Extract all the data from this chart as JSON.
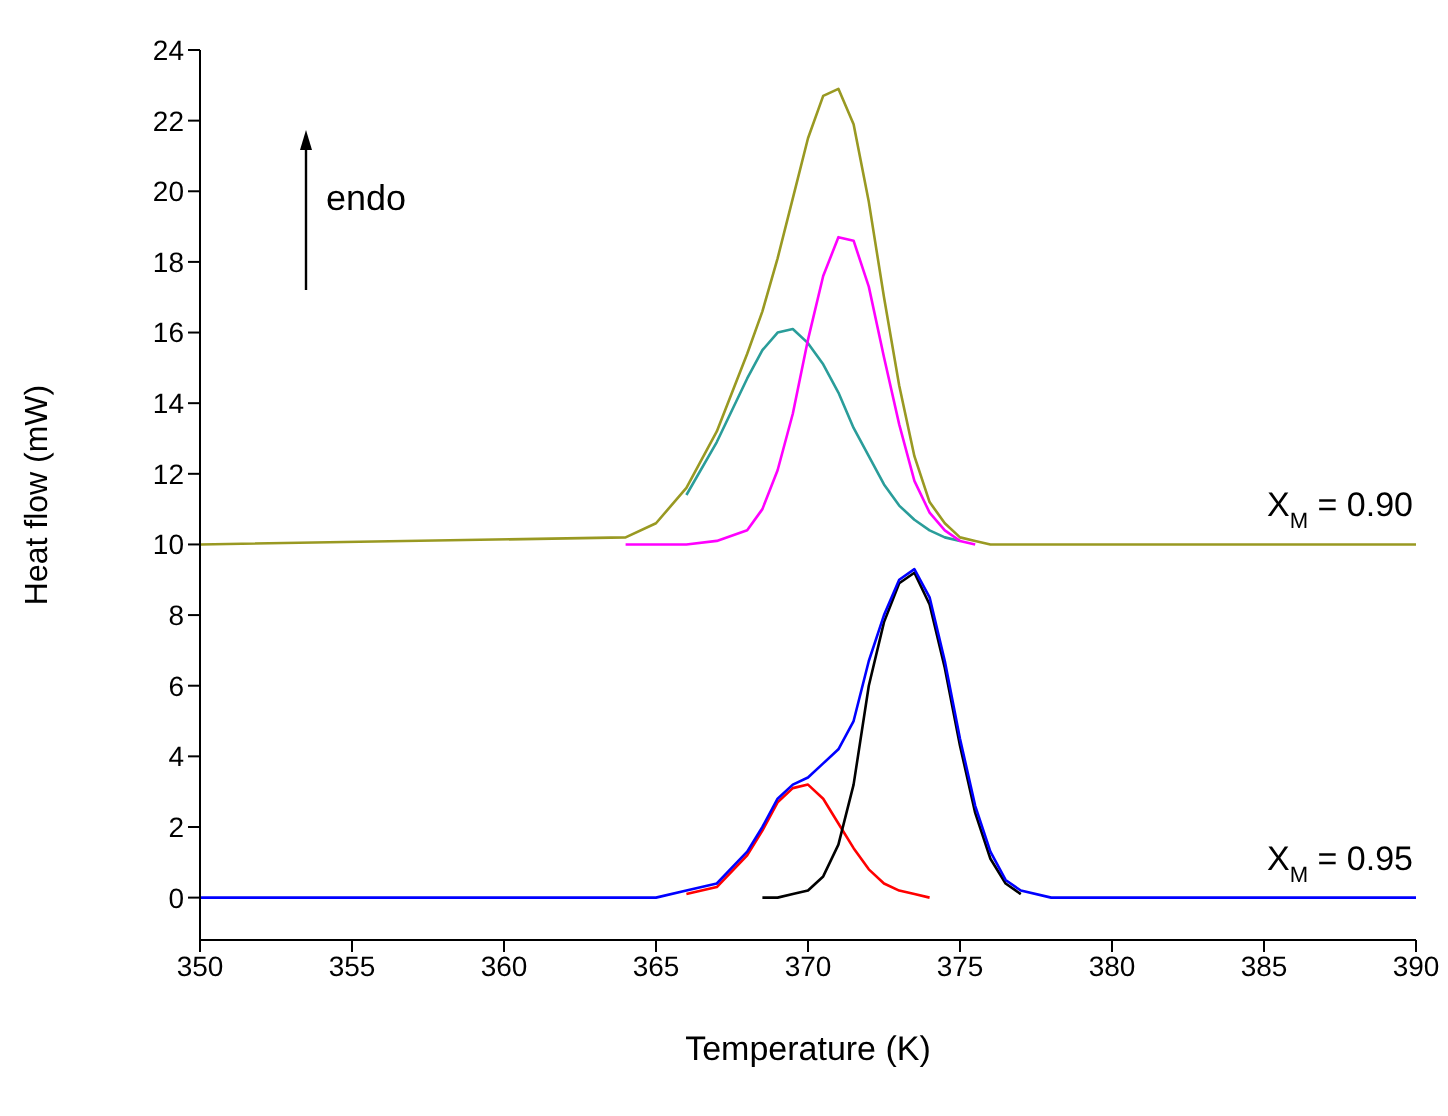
{
  "chart_data": {
    "type": "line",
    "xlabel": "Temperature (K)",
    "ylabel": "Heat flow (mW)",
    "x": [
      350,
      364,
      365,
      366,
      367,
      368,
      368.5,
      369,
      369.5,
      370,
      370.5,
      371,
      371.5,
      372,
      372.5,
      373,
      373.5,
      374,
      374.5,
      375,
      375.5,
      376,
      376.5,
      377,
      378,
      379,
      390
    ],
    "series": [
      {
        "color": "#2a9d9a",
        "values": [
          null,
          null,
          null,
          11.4,
          12.9,
          14.7,
          15.5,
          16.0,
          16.1,
          15.7,
          15.1,
          14.3,
          13.3,
          12.5,
          11.7,
          11.1,
          10.7,
          10.4,
          10.2,
          10.1,
          null,
          null,
          null,
          null,
          null,
          null,
          null
        ]
      },
      {
        "color": "#ff00ff",
        "values": [
          null,
          10,
          10,
          10,
          10.1,
          10.4,
          11.0,
          12.1,
          13.7,
          15.8,
          17.6,
          18.7,
          18.6,
          17.3,
          15.3,
          13.4,
          11.8,
          10.9,
          10.4,
          10.1,
          10,
          null,
          null,
          null,
          null,
          null,
          null
        ]
      },
      {
        "color": "#999922",
        "values": [
          10,
          10.2,
          10.6,
          11.6,
          13.2,
          15.4,
          16.6,
          18.1,
          19.8,
          21.5,
          22.7,
          22.9,
          21.9,
          19.7,
          17.0,
          14.5,
          12.5,
          11.2,
          10.6,
          10.2,
          10.1,
          10,
          10,
          10,
          10,
          10,
          10
        ]
      },
      {
        "color": "#ff0000",
        "values": [
          null,
          null,
          null,
          0.1,
          0.3,
          1.2,
          1.9,
          2.7,
          3.1,
          3.2,
          2.8,
          2.1,
          1.4,
          0.8,
          0.4,
          0.2,
          0.1,
          0,
          null,
          null,
          null,
          null,
          null,
          null,
          null,
          null,
          null
        ]
      },
      {
        "color": "#000000",
        "values": [
          null,
          null,
          null,
          null,
          null,
          null,
          0,
          0,
          0.1,
          0.2,
          0.6,
          1.5,
          3.2,
          6.0,
          7.8,
          8.9,
          9.2,
          8.3,
          6.5,
          4.3,
          2.4,
          1.1,
          0.4,
          0.1,
          null,
          null,
          null
        ]
      },
      {
        "color": "#0000ff",
        "values": [
          0,
          0,
          0,
          0.2,
          0.4,
          1.3,
          2.0,
          2.8,
          3.2,
          3.4,
          3.8,
          4.2,
          5.0,
          6.7,
          8.0,
          9.0,
          9.3,
          8.5,
          6.7,
          4.5,
          2.6,
          1.3,
          0.5,
          0.2,
          0,
          0,
          0
        ]
      }
    ],
    "xlim": [
      350,
      390
    ],
    "xticks": [
      350,
      355,
      360,
      365,
      370,
      375,
      380,
      385,
      390
    ],
    "ylim": [
      -1.2,
      24
    ],
    "yticks": [
      0,
      2,
      4,
      6,
      8,
      10,
      12,
      14,
      16,
      18,
      20,
      22,
      24
    ],
    "grid": false,
    "legend": false,
    "marker": "none",
    "line_style": "solid",
    "annotations": [
      "endo",
      {
        "text": "X$_{M}$ = 0.90",
        "x": 387.5,
        "y": 10
      },
      {
        "text": "X$_{M}$ = 0.95",
        "x": 387.5,
        "y": 0
      }
    ]
  }
}
